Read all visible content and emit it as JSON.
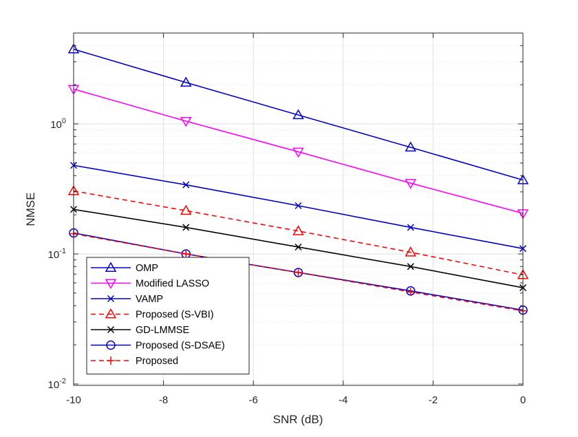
{
  "chart_data": {
    "type": "line",
    "xlabel": "SNR (dB)",
    "ylabel": "NMSE",
    "xlim": [
      -10,
      0
    ],
    "ylim": [
      0.01,
      6
    ],
    "yscale": "log",
    "grid": true,
    "minor_grid": true,
    "legend_position": "bottom-left",
    "x_ticks": [
      -10,
      -8,
      -6,
      -4,
      -2,
      0
    ],
    "x_tick_labels": [
      "-10",
      "-8",
      "-6",
      "-4",
      "-2",
      "0"
    ],
    "y_ticks": [
      {
        "value": 0.01,
        "base": "10",
        "exp": "-2"
      },
      {
        "value": 0.1,
        "base": "10",
        "exp": "-1"
      },
      {
        "value": 1,
        "base": "10",
        "exp": "0"
      }
    ],
    "x": [
      -10,
      -7.5,
      -5,
      -2.5,
      0
    ],
    "series": [
      {
        "name": "OMP",
        "color": "#0000cc",
        "dash": "solid",
        "marker": "triangle-up",
        "values": [
          3.75,
          2.08,
          1.17,
          0.66,
          0.37
        ]
      },
      {
        "name": "Modified LASSO",
        "color": "#ff00ff",
        "dash": "solid",
        "marker": "triangle-down",
        "values": [
          1.85,
          1.05,
          0.61,
          0.35,
          0.205
        ]
      },
      {
        "name": "VAMP",
        "color": "#0000cc",
        "dash": "solid",
        "marker": "x",
        "values": [
          0.48,
          0.34,
          0.235,
          0.16,
          0.11
        ]
      },
      {
        "name": "Proposed (S-VBI)",
        "color": "#ff0000",
        "dash": "dashed",
        "marker": "triangle-up",
        "values": [
          0.305,
          0.215,
          0.15,
          0.103,
          0.069
        ]
      },
      {
        "name": "GD-LMMSE",
        "color": "#000000",
        "dash": "solid",
        "marker": "x",
        "values": [
          0.22,
          0.16,
          0.113,
          0.08,
          0.055
        ]
      },
      {
        "name": "Proposed (S-DSAE)",
        "color": "#0000cc",
        "dash": "solid",
        "marker": "circle",
        "values": [
          0.145,
          0.1,
          0.072,
          0.052,
          0.037
        ]
      },
      {
        "name": "Proposed",
        "color": "#ff0000",
        "dash": "dashed",
        "marker": "plus",
        "values": [
          0.143,
          0.1,
          0.072,
          0.051,
          0.0365
        ]
      }
    ]
  }
}
